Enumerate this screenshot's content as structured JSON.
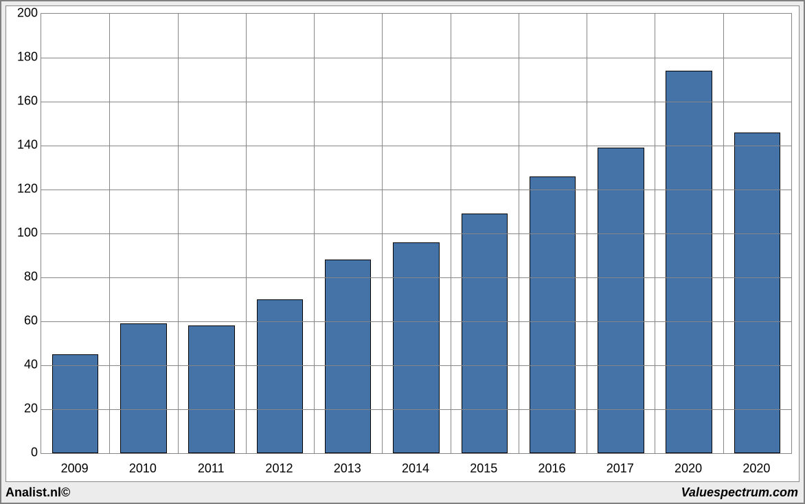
{
  "chart": {
    "type": "bar",
    "categories": [
      "2009",
      "2010",
      "2011",
      "2012",
      "2013",
      "2014",
      "2015",
      "2016",
      "2017",
      "2020",
      "2020"
    ],
    "values": [
      45,
      59,
      58,
      70,
      88,
      96,
      109,
      126,
      139,
      174,
      146
    ],
    "bar_color": "#4573a7",
    "bar_border_color": "#000000",
    "ylim": [
      0,
      200
    ],
    "ytick_step": 20,
    "grid_color": "#868686",
    "background_color": "#ffffff",
    "plot_border_color": "#868686",
    "bar_width_ratio": 0.68,
    "tick_fontsize": 18,
    "gap_ratio": 0.32
  },
  "footer": {
    "left": "Analist.nl©",
    "right": "Valuespectrum.com"
  },
  "frame": {
    "outer_border_color": "#808080",
    "outer_background": "#ececec"
  }
}
